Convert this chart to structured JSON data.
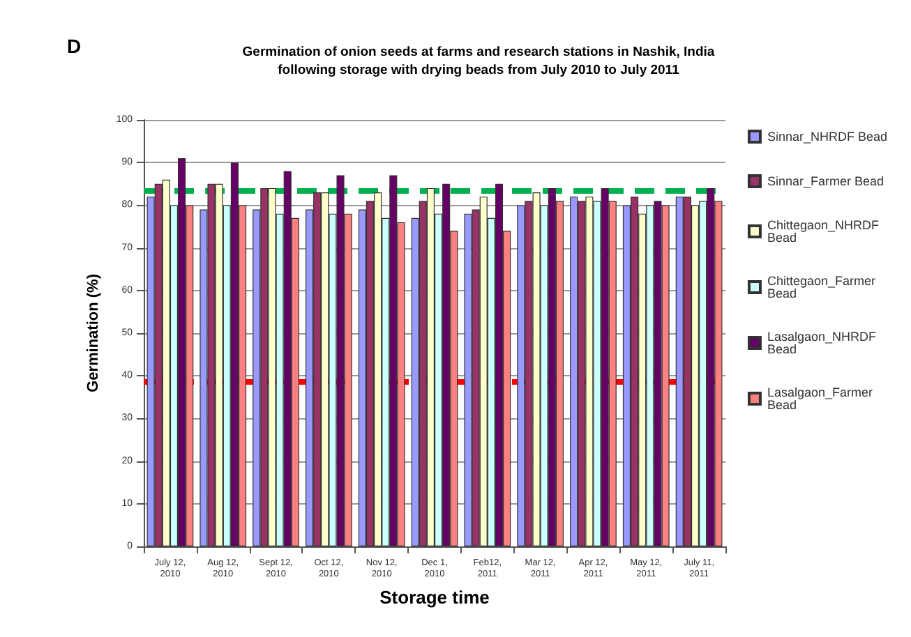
{
  "chart_data": {
    "type": "bar",
    "title": "Germination of onion seeds at farms and research stations in Nashik, India\nfollowing storage with drying beads from July 2010 to July 2011",
    "xlabel": "Storage time",
    "ylabel": "Germination (%)",
    "annotations": [
      "D"
    ],
    "categories": [
      "July 12,\n2010",
      "Aug 12,\n2010",
      "Sept 12,\n2010",
      "Oct 12,\n2010",
      "Nov 12,\n2010",
      "Dec 1,\n2010",
      "Feb12,\n2011",
      "Mar 12,\n2011",
      "Apr 12,\n2011",
      "May 12,\n2011",
      "July 11,\n2011"
    ],
    "series": [
      {
        "name": "Sinnar_NHRDF Bead",
        "color": "#9999ff",
        "values": [
          82,
          79,
          79,
          79,
          79,
          77,
          78,
          80,
          82,
          80,
          82
        ]
      },
      {
        "name": "Sinnar_Farmer Bead",
        "color": "#993366",
        "values": [
          85,
          85,
          84,
          83,
          81,
          81,
          79,
          81,
          81,
          82,
          82
        ]
      },
      {
        "name": "Chittegaon_NHRDF Bead",
        "color": "#ffffcc",
        "values": [
          86,
          85,
          84,
          83,
          83,
          84,
          82,
          83,
          82,
          78,
          80
        ]
      },
      {
        "name": "Chittegaon_Farmer Bead",
        "color": "#ccffff",
        "values": [
          80,
          80,
          78,
          78,
          77,
          78,
          77,
          80,
          81,
          80,
          81
        ]
      },
      {
        "name": "Lasalgaon_NHRDF Bead",
        "color": "#660066",
        "values": [
          91,
          90,
          88,
          87,
          87,
          85,
          85,
          84,
          84,
          81,
          84
        ]
      },
      {
        "name": "Lasalgaon_Farmer Bead",
        "color": "#ff8080",
        "values": [
          80,
          80,
          77,
          78,
          76,
          74,
          74,
          81,
          81,
          80,
          81
        ]
      }
    ],
    "ylim": [
      0,
      100
    ],
    "yticks": [
      0,
      10,
      20,
      30,
      40,
      50,
      60,
      70,
      80,
      90,
      100
    ],
    "grid": "y",
    "legend": "right",
    "ref_lines": [
      {
        "axis": "y",
        "value": 83.4,
        "color": "#00b050",
        "line_style": "dashed"
      },
      {
        "axis": "y",
        "value": 38.7,
        "color": "#ff0000",
        "line_style": "dashed"
      }
    ]
  }
}
